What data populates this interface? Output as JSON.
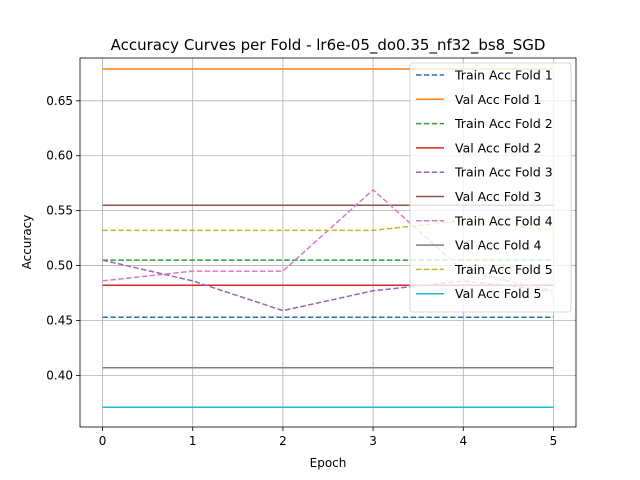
{
  "chart_data": {
    "type": "line",
    "title": "Accuracy Curves per Fold - lr6e-05_do0.35_nf32_bs8_SGD",
    "xlabel": "Epoch",
    "ylabel": "Accuracy",
    "x": [
      0,
      1,
      2,
      3,
      4,
      5
    ],
    "xlim": [
      -0.25,
      5.25
    ],
    "ylim": [
      0.353,
      0.689
    ],
    "xticks": [
      "0",
      "1",
      "2",
      "3",
      "4",
      "5"
    ],
    "yticks": [
      "0.40",
      "0.45",
      "0.50",
      "0.55",
      "0.60",
      "0.65"
    ],
    "grid": true,
    "legend_position": "upper-right",
    "series": [
      {
        "name": "Train Acc Fold 1",
        "color": "#1f77b4",
        "dashed": true,
        "values": [
          0.453,
          0.453,
          0.453,
          0.453,
          0.453,
          0.453
        ]
      },
      {
        "name": "Val Acc Fold 1",
        "color": "#ff7f0e",
        "dashed": false,
        "values": [
          0.679,
          0.679,
          0.679,
          0.679,
          0.679,
          0.679
        ]
      },
      {
        "name": "Train Acc Fold 2",
        "color": "#2ca02c",
        "dashed": true,
        "values": [
          0.505,
          0.505,
          0.505,
          0.505,
          0.505,
          0.505
        ]
      },
      {
        "name": "Val Acc Fold 2",
        "color": "#d62728",
        "dashed": false,
        "values": [
          0.482,
          0.482,
          0.482,
          0.482,
          0.482,
          0.482
        ]
      },
      {
        "name": "Train Acc Fold 3",
        "color": "#9467bd",
        "dashed": true,
        "values": [
          0.505,
          0.486,
          0.459,
          0.477,
          0.486,
          0.477
        ]
      },
      {
        "name": "Val Acc Fold 3",
        "color": "#8c564b",
        "dashed": false,
        "values": [
          0.555,
          0.555,
          0.555,
          0.555,
          0.555,
          0.555
        ]
      },
      {
        "name": "Train Acc Fold 4",
        "color": "#e377c2",
        "dashed": true,
        "values": [
          0.486,
          0.495,
          0.495,
          0.569,
          0.495,
          0.477
        ]
      },
      {
        "name": "Val Acc Fold 4",
        "color": "#7f7f7f",
        "dashed": false,
        "values": [
          0.407,
          0.407,
          0.407,
          0.407,
          0.407,
          0.407
        ]
      },
      {
        "name": "Train Acc Fold 5",
        "color": "#bcbd22",
        "dashed": true,
        "values": [
          0.532,
          0.532,
          0.532,
          0.532,
          0.541,
          0.532
        ]
      },
      {
        "name": "Val Acc Fold 5",
        "color": "#17becf",
        "dashed": false,
        "values": [
          0.371,
          0.371,
          0.371,
          0.371,
          0.371,
          0.371
        ]
      }
    ]
  }
}
